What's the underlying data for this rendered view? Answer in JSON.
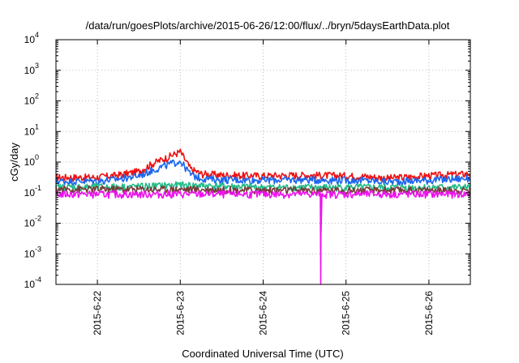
{
  "chart_data": {
    "type": "line",
    "title": "/data/run/goesPlots/archive/2015-06-26/12:00/flux/../bryn/5daysEarthData.plot",
    "xlabel": "Coordinated Universal Time (UTC)",
    "ylabel": "cGy/day",
    "yscale": "log",
    "ylim": [
      0.0001,
      10000
    ],
    "xlim": [
      "2015-06-21 12:00",
      "2015-06-26 12:00"
    ],
    "y_ticks": [
      {
        "base": "10",
        "exp": "-4",
        "value": 0.0001
      },
      {
        "base": "10",
        "exp": "-3",
        "value": 0.001
      },
      {
        "base": "10",
        "exp": "-2",
        "value": 0.01
      },
      {
        "base": "10",
        "exp": "-1",
        "value": 0.1
      },
      {
        "base": "10",
        "exp": "0",
        "value": 1
      },
      {
        "base": "10",
        "exp": "1",
        "value": 10
      },
      {
        "base": "10",
        "exp": "2",
        "value": 100
      },
      {
        "base": "10",
        "exp": "3",
        "value": 1000
      },
      {
        "base": "10",
        "exp": "4",
        "value": 10000
      }
    ],
    "x_ticks": [
      "2015-6-22",
      "2015-6-23",
      "2015-6-24",
      "2015-6-25",
      "2015-6-26"
    ],
    "grid": true,
    "legend": "none",
    "series": [
      {
        "color": "#ee1111",
        "x": [
          "2015-06-21 12:00",
          "2015-06-22 00:00",
          "2015-06-22 06:00",
          "2015-06-22 12:00",
          "2015-06-22 16:00",
          "2015-06-22 20:00",
          "2015-06-23 00:00",
          "2015-06-23 03:00",
          "2015-06-23 06:00",
          "2015-06-23 12:00",
          "2015-06-24 00:00",
          "2015-06-24 12:00",
          "2015-06-25 00:00",
          "2015-06-25 06:00",
          "2015-06-25 12:00",
          "2015-06-26 00:00",
          "2015-06-26 12:00"
        ],
        "y": [
          0.32,
          0.32,
          0.38,
          0.5,
          0.9,
          1.4,
          2.2,
          0.6,
          0.42,
          0.38,
          0.36,
          0.38,
          0.36,
          0.34,
          0.3,
          0.36,
          0.42
        ]
      },
      {
        "color": "#1a66ee",
        "x": [
          "2015-06-21 12:00",
          "2015-06-22 00:00",
          "2015-06-22 06:00",
          "2015-06-22 12:00",
          "2015-06-22 16:00",
          "2015-06-22 20:00",
          "2015-06-23 00:00",
          "2015-06-23 03:00",
          "2015-06-23 06:00",
          "2015-06-23 12:00",
          "2015-06-24 00:00",
          "2015-06-24 12:00",
          "2015-06-25 00:00",
          "2015-06-25 06:00",
          "2015-06-25 12:00",
          "2015-06-26 00:00",
          "2015-06-26 12:00"
        ],
        "y": [
          0.24,
          0.24,
          0.28,
          0.36,
          0.55,
          0.8,
          1.1,
          0.4,
          0.3,
          0.27,
          0.26,
          0.27,
          0.26,
          0.25,
          0.23,
          0.26,
          0.3
        ]
      },
      {
        "color": "#22bb88",
        "x": [
          "2015-06-21 12:00",
          "2015-06-22 12:00",
          "2015-06-23 00:00",
          "2015-06-24 00:00",
          "2015-06-25 00:00",
          "2015-06-26 12:00"
        ],
        "y": [
          0.15,
          0.16,
          0.18,
          0.15,
          0.15,
          0.15
        ]
      },
      {
        "color": "#7a3a3a",
        "x": [
          "2015-06-21 12:00",
          "2015-06-23 00:00",
          "2015-06-24 00:00",
          "2015-06-25 00:00",
          "2015-06-26 12:00"
        ],
        "y": [
          0.13,
          0.13,
          0.12,
          0.12,
          0.12
        ]
      },
      {
        "color": "#ee11ee",
        "x": [
          "2015-06-21 12:00",
          "2015-06-22 12:00",
          "2015-06-23 12:00",
          "2015-06-24 12:00",
          "2015-06-24 16:30",
          "2015-06-24 16:40",
          "2015-06-24 16:50",
          "2015-06-25 12:00",
          "2015-06-26 12:00"
        ],
        "y": [
          0.09,
          0.09,
          0.09,
          0.09,
          0.09,
          0.0001,
          0.09,
          0.09,
          0.09
        ]
      }
    ]
  }
}
